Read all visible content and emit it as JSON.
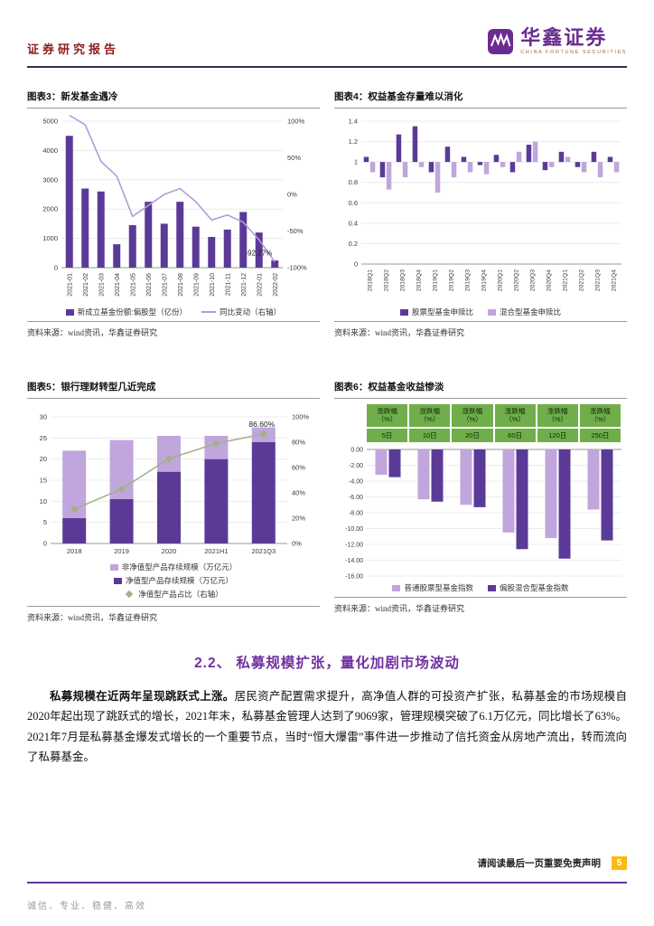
{
  "colors": {
    "purple_dark": "#5b3a97",
    "purple_light": "#c0a6dc",
    "line_light": "#b49bd8",
    "green_line": "#a3b086",
    "green_cell": "#6fae4a",
    "brand_purple": "#6b2c91",
    "heading_purple": "#7030a0",
    "report_red": "#8e1b1b",
    "page_badge_orange": "#fdb813"
  },
  "header": {
    "report_type": "证券研究报告",
    "brand_name": "华鑫证券",
    "brand_tagline": "CHINA FORTUNE SECURITIES"
  },
  "panels": {
    "p3": {
      "title": "图表3：新发基金遇冷",
      "source": "资料来源：wind资讯，华鑫证券研究"
    },
    "p4": {
      "title": "图表4：权益基金存量难以消化",
      "source": "资料来源：wind资讯，华鑫证券研究"
    },
    "p5": {
      "title": "图表5：银行理财转型几近完成",
      "source": "资料来源：wind资讯，华鑫证券研究"
    },
    "p6": {
      "title": "图表6：权益基金收益惨淡",
      "source": "资料来源：wind资讯，华鑫证券研究"
    }
  },
  "chart_data": [
    {
      "id": "chart3",
      "type": "bar+line",
      "title": "新发基金遇冷",
      "categories": [
        "2021-01",
        "2021-02",
        "2021-03",
        "2021-04",
        "2021-05",
        "2021-06",
        "2021-07",
        "2021-08",
        "2021-09",
        "2021-10",
        "2021-11",
        "2021-12",
        "2022-01",
        "2022-02"
      ],
      "series": [
        {
          "name": "新成立基金份额:偏股型（亿份）",
          "type": "bar",
          "axis": "left",
          "values": [
            4500,
            2700,
            2600,
            800,
            1450,
            2250,
            1500,
            2250,
            1400,
            1050,
            1300,
            1900,
            1200,
            250
          ]
        },
        {
          "name": "同比变动（右轴）",
          "type": "line",
          "axis": "right",
          "values": [
            108,
            95,
            45,
            25,
            -30,
            -15,
            0,
            8,
            -10,
            -35,
            -28,
            -38,
            -62,
            -92.27
          ]
        }
      ],
      "left_axis": {
        "min": 0,
        "max": 5000,
        "step": 1000,
        "ticks": [
          "0",
          "1000",
          "2000",
          "3000",
          "4000",
          "5000"
        ]
      },
      "right_axis": {
        "min": -100,
        "max": 100,
        "step": 50,
        "ticks": [
          "-100%",
          "-50%",
          "0%",
          "50%",
          "100%"
        ]
      },
      "annotation": {
        "text": "-92.27%",
        "x_index": 13
      }
    },
    {
      "id": "chart4",
      "type": "bar",
      "title": "权益基金存量难以消化",
      "baseline": 1,
      "categories": [
        "2018Q1",
        "2018Q2",
        "2018Q3",
        "2018Q4",
        "2019Q1",
        "2019Q2",
        "2019Q3",
        "2019Q4",
        "2020Q1",
        "2020Q2",
        "2020Q3",
        "2020Q4",
        "2021Q1",
        "2021Q2",
        "2021Q3",
        "2021Q4"
      ],
      "series": [
        {
          "name": "股票型基金申赎比",
          "values": [
            1.05,
            0.85,
            1.27,
            1.35,
            0.9,
            1.15,
            1.05,
            0.97,
            1.07,
            0.9,
            1.17,
            0.92,
            1.1,
            0.95,
            1.1,
            1.05
          ]
        },
        {
          "name": "混合型基金申赎比",
          "values": [
            0.9,
            0.73,
            0.85,
            0.95,
            0.7,
            0.85,
            0.9,
            0.88,
            0.95,
            1.1,
            1.2,
            0.95,
            1.05,
            0.9,
            0.85,
            0.9
          ]
        }
      ],
      "y_axis": {
        "min": 0,
        "max": 1.4,
        "step": 0.2,
        "ticks": [
          "0",
          "0.2",
          "0.4",
          "0.6",
          "0.8",
          "1",
          "1.2",
          "1.4"
        ]
      }
    },
    {
      "id": "chart5",
      "type": "stacked-bar+line",
      "title": "银行理财转型几近完成",
      "categories": [
        "2018",
        "2019",
        "2020",
        "2021H1",
        "2021Q3"
      ],
      "series": [
        {
          "name": "净值型产品存续规模（万亿元）",
          "type": "bar",
          "values": [
            6,
            10.5,
            17,
            20,
            24
          ]
        },
        {
          "name": "非净值型产品存续规模（万亿元）",
          "type": "bar",
          "values": [
            16,
            14,
            8.5,
            5.5,
            3.5
          ]
        },
        {
          "name": "净值型产品占比（右轴）",
          "type": "line",
          "axis": "right",
          "values": [
            27,
            43,
            67,
            79,
            86.6
          ]
        }
      ],
      "left_axis": {
        "min": 0,
        "max": 30,
        "step": 5,
        "ticks": [
          "0",
          "5",
          "10",
          "15",
          "20",
          "25",
          "30"
        ]
      },
      "right_axis": {
        "min": 0,
        "max": 100,
        "step": 20,
        "ticks": [
          "0%",
          "20%",
          "40%",
          "60%",
          "80%",
          "100%"
        ]
      },
      "annotation": {
        "text": "86.60%",
        "x_index": 4
      }
    },
    {
      "id": "chart6",
      "type": "bar",
      "title": "权益基金收益惨淡",
      "header_lines": [
        "涨跌幅",
        "（%）"
      ],
      "categories": [
        "5日",
        "10日",
        "20日",
        "60日",
        "120日",
        "250日"
      ],
      "series": [
        {
          "name": "普通股票型基金指数",
          "values": [
            -3.2,
            -6.3,
            -7.0,
            -10.5,
            -11.2,
            -7.6
          ]
        },
        {
          "name": "偏股混合型基金指数",
          "values": [
            -3.5,
            -6.6,
            -7.3,
            -12.6,
            -13.8,
            -11.5
          ]
        }
      ],
      "y_axis": {
        "min": -16,
        "max": 0,
        "step": 2,
        "ticks": [
          "0.00",
          "-2.00",
          "-4.00",
          "-6.00",
          "-8.00",
          "-10.00",
          "-12.00",
          "-14.00",
          "-16.00"
        ]
      }
    }
  ],
  "section": {
    "heading": "2.2、 私募规模扩张，量化加剧市场波动",
    "para_bold": "私募规模在近两年呈现跳跃式上涨。",
    "para_rest": "居民资产配置需求提升，高净值人群的可投资产扩张，私募基金的市场规模自2020年起出现了跳跃式的增长，2021年末，私募基金管理人达到了9069家，管理规模突破了6.1万亿元，同比增长了63%。2021年7月是私募基金爆发式增长的一个重要节点，当时“恒大爆雷”事件进一步推动了信托资金从房地产流出，转而流向了私募基金。"
  },
  "footer": {
    "disclaimer": "请阅读最后一页重要免责声明",
    "page_number": "5",
    "motto": "诚信、专业、稳健、高效"
  }
}
